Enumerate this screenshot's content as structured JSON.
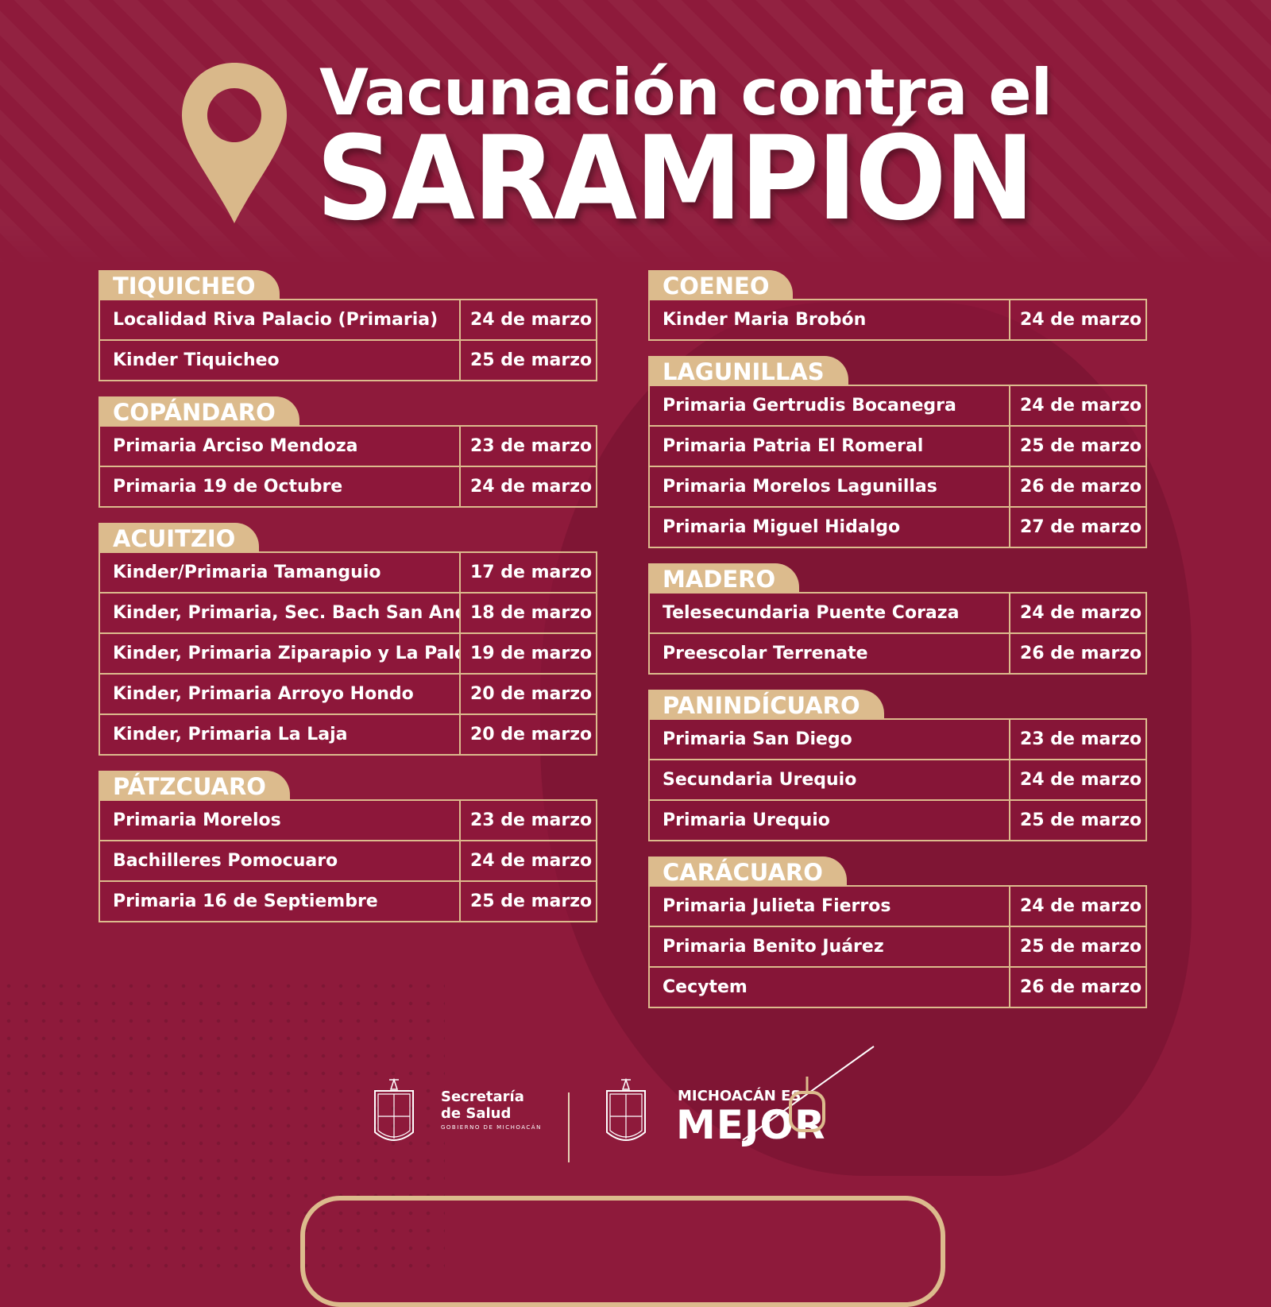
{
  "title": {
    "line1": "Vacunación contra el",
    "line2": "SARAMPIÓN"
  },
  "colors": {
    "background": "#8e1a3b",
    "accent_gold": "#dcbb8d",
    "text": "#ffffff"
  },
  "icons": {
    "header": "map-pin-icon"
  },
  "left_sections": [
    {
      "name": "TIQUICHEO",
      "rows": [
        {
          "place": "Localidad Riva Palacio (Primaria)",
          "date": "24 de marzo"
        },
        {
          "place": "Kinder Tiquicheo",
          "date": "25 de marzo"
        }
      ]
    },
    {
      "name": "COPÁNDARO",
      "rows": [
        {
          "place": "Primaria Arciso Mendoza",
          "date": "23 de marzo"
        },
        {
          "place": "Primaria 19 de Octubre",
          "date": "24 de marzo"
        }
      ]
    },
    {
      "name": "ACUITZIO",
      "rows": [
        {
          "place": "Kinder/Primaria Tamanguio",
          "date": "17 de marzo"
        },
        {
          "place": "Kinder, Primaria, Sec. Bach San Andres",
          "date": "18 de marzo"
        },
        {
          "place": "Kinder, Primaria Ziparapio y La Paloma",
          "date": "19 de marzo"
        },
        {
          "place": "Kinder, Primaria Arroyo Hondo",
          "date": "20 de marzo"
        },
        {
          "place": "Kinder, Primaria La Laja",
          "date": "20 de marzo"
        }
      ]
    },
    {
      "name": "PÁTZCUARO",
      "rows": [
        {
          "place": "Primaria Morelos",
          "date": "23 de marzo"
        },
        {
          "place": "Bachilleres Pomocuaro",
          "date": "24 de marzo"
        },
        {
          "place": "Primaria 16 de Septiembre",
          "date": "25 de marzo"
        }
      ]
    }
  ],
  "right_sections": [
    {
      "name": "COENEO",
      "rows": [
        {
          "place": "Kinder Maria Brobón",
          "date": "24 de marzo"
        }
      ]
    },
    {
      "name": "LAGUNILLAS",
      "rows": [
        {
          "place": "Primaria Gertrudis Bocanegra",
          "date": "24 de marzo"
        },
        {
          "place": "Primaria Patria El Romeral",
          "date": "25 de marzo"
        },
        {
          "place": "Primaria Morelos Lagunillas",
          "date": "26 de marzo"
        },
        {
          "place": "Primaria Miguel Hidalgo",
          "date": "27 de marzo"
        }
      ]
    },
    {
      "name": "MADERO",
      "rows": [
        {
          "place": "Telesecundaria Puente Coraza",
          "date": "24 de marzo"
        },
        {
          "place": "Preescolar Terrenate",
          "date": "26 de marzo"
        }
      ]
    },
    {
      "name": "PANINDÍCUARO",
      "rows": [
        {
          "place": "Primaria San Diego",
          "date": "23 de marzo"
        },
        {
          "place": "Secundaria Urequio",
          "date": "24 de marzo"
        },
        {
          "place": "Primaria Urequio",
          "date": "25 de marzo"
        }
      ]
    },
    {
      "name": "CARÁCUARO",
      "rows": [
        {
          "place": "Primaria Julieta Fierros",
          "date": "24 de marzo"
        },
        {
          "place": "Primaria Benito Juárez",
          "date": "25 de marzo"
        },
        {
          "place": "Cecytem",
          "date": "26 de marzo"
        }
      ]
    }
  ],
  "footer": {
    "salud_line1": "Secretaría",
    "salud_line2": "de Salud",
    "salud_sub": "GOBIERNO DE MICHOACÁN",
    "brand_line1": "MICHOACÁN ES",
    "brand_line2": "MEJOR"
  }
}
